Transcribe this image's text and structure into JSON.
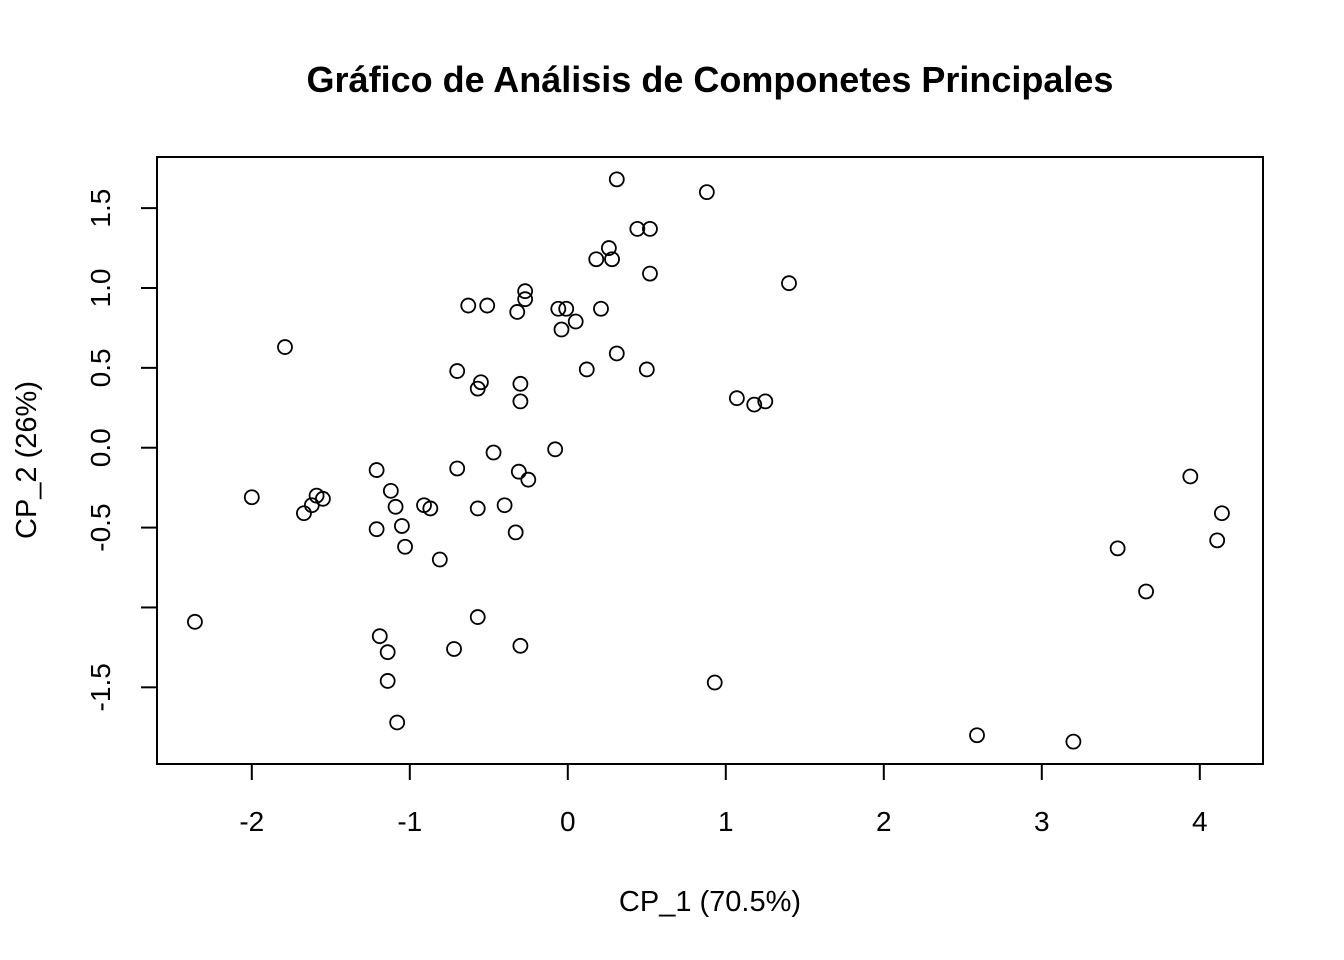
{
  "chart_data": {
    "type": "scatter",
    "title": "Gráfico de Análisis de Componetes Principales",
    "xlabel": "CP_1 (70.5%)",
    "ylabel": "CP_2 (26%)",
    "xlim": [
      -2.6,
      4.4
    ],
    "ylim": [
      -1.98,
      1.82
    ],
    "x_ticks": [
      -2,
      -1,
      0,
      1,
      2,
      3,
      4
    ],
    "x_tick_labels": [
      "-2",
      "-1",
      "0",
      "1",
      "2",
      "3",
      "4"
    ],
    "y_ticks": [
      -1.5,
      -1.0,
      -0.5,
      0.0,
      0.5,
      1.0,
      1.5
    ],
    "y_tick_labels": [
      "-1.5",
      "",
      "-0.5",
      "0.0",
      "0.5",
      "1.0",
      "1.5"
    ],
    "grid": false,
    "legend": "none",
    "marker": "open-circle",
    "points": [
      {
        "x": 0.31,
        "y": 1.68
      },
      {
        "x": 0.88,
        "y": 1.6
      },
      {
        "x": 0.44,
        "y": 1.37
      },
      {
        "x": 0.52,
        "y": 1.37
      },
      {
        "x": 0.26,
        "y": 1.25
      },
      {
        "x": 0.18,
        "y": 1.18
      },
      {
        "x": 0.28,
        "y": 1.18
      },
      {
        "x": 0.52,
        "y": 1.09
      },
      {
        "x": 1.4,
        "y": 1.03
      },
      {
        "x": -0.27,
        "y": 0.98
      },
      {
        "x": -0.27,
        "y": 0.93
      },
      {
        "x": -0.63,
        "y": 0.89
      },
      {
        "x": -0.51,
        "y": 0.89
      },
      {
        "x": -0.06,
        "y": 0.87
      },
      {
        "x": -0.01,
        "y": 0.87
      },
      {
        "x": 0.21,
        "y": 0.87
      },
      {
        "x": -0.32,
        "y": 0.85
      },
      {
        "x": 0.05,
        "y": 0.79
      },
      {
        "x": -0.04,
        "y": 0.74
      },
      {
        "x": -1.79,
        "y": 0.63
      },
      {
        "x": 0.31,
        "y": 0.59
      },
      {
        "x": -0.7,
        "y": 0.48
      },
      {
        "x": 0.12,
        "y": 0.49
      },
      {
        "x": 0.5,
        "y": 0.49
      },
      {
        "x": -0.55,
        "y": 0.41
      },
      {
        "x": -0.3,
        "y": 0.4
      },
      {
        "x": -0.57,
        "y": 0.37
      },
      {
        "x": 1.07,
        "y": 0.31
      },
      {
        "x": -0.3,
        "y": 0.29
      },
      {
        "x": 1.25,
        "y": 0.29
      },
      {
        "x": 1.18,
        "y": 0.27
      },
      {
        "x": -0.08,
        "y": -0.01
      },
      {
        "x": -0.47,
        "y": -0.03
      },
      {
        "x": -1.21,
        "y": -0.14
      },
      {
        "x": -0.7,
        "y": -0.13
      },
      {
        "x": -0.31,
        "y": -0.15
      },
      {
        "x": -0.25,
        "y": -0.2
      },
      {
        "x": -2.0,
        "y": -0.31
      },
      {
        "x": -1.12,
        "y": -0.27
      },
      {
        "x": -1.59,
        "y": -0.3
      },
      {
        "x": -1.55,
        "y": -0.32
      },
      {
        "x": -1.62,
        "y": -0.36
      },
      {
        "x": -1.67,
        "y": -0.41
      },
      {
        "x": -1.09,
        "y": -0.37
      },
      {
        "x": -0.91,
        "y": -0.36
      },
      {
        "x": -0.87,
        "y": -0.38
      },
      {
        "x": -0.57,
        "y": -0.38
      },
      {
        "x": -0.4,
        "y": -0.36
      },
      {
        "x": -1.21,
        "y": -0.51
      },
      {
        "x": -1.05,
        "y": -0.49
      },
      {
        "x": -0.33,
        "y": -0.53
      },
      {
        "x": -1.03,
        "y": -0.62
      },
      {
        "x": -0.81,
        "y": -0.7
      },
      {
        "x": -2.36,
        "y": -1.09
      },
      {
        "x": -1.19,
        "y": -1.18
      },
      {
        "x": -1.14,
        "y": -1.28
      },
      {
        "x": -0.57,
        "y": -1.06
      },
      {
        "x": -0.72,
        "y": -1.26
      },
      {
        "x": -0.3,
        "y": -1.24
      },
      {
        "x": -1.14,
        "y": -1.46
      },
      {
        "x": -1.08,
        "y": -1.72
      },
      {
        "x": 0.93,
        "y": -1.47
      },
      {
        "x": 2.59,
        "y": -1.8
      },
      {
        "x": 3.2,
        "y": -1.84
      },
      {
        "x": 3.48,
        "y": -0.63
      },
      {
        "x": 3.66,
        "y": -0.9
      },
      {
        "x": 3.94,
        "y": -0.18
      },
      {
        "x": 4.14,
        "y": -0.41
      },
      {
        "x": 4.11,
        "y": -0.58
      }
    ]
  }
}
